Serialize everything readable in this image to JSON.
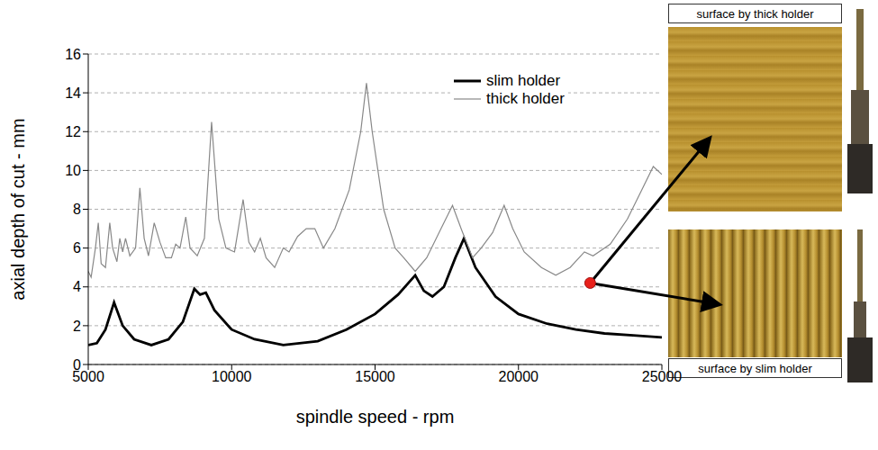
{
  "chart_data": {
    "type": "line",
    "xlabel": "spindle speed - rpm",
    "ylabel": "axial depth of cut - mm",
    "xlim": [
      5000,
      25000
    ],
    "xticks": [
      5000,
      10000,
      15000,
      20000,
      25000
    ],
    "ylim": [
      0,
      16
    ],
    "yticks": [
      0,
      2,
      4,
      6,
      8,
      10,
      12,
      14,
      16
    ],
    "grid": true,
    "legend": "upper right",
    "series": [
      {
        "name": "slim holder",
        "color": "#000000",
        "x": [
          5000,
          5300,
          5600,
          5900,
          6200,
          6600,
          7200,
          7800,
          8300,
          8700,
          8900,
          9100,
          9400,
          10000,
          10800,
          11800,
          13000,
          14000,
          15000,
          15800,
          16400,
          16700,
          17000,
          17400,
          17800,
          18100,
          18500,
          19200,
          20000,
          21000,
          22000,
          23000,
          24000,
          25000
        ],
        "values": [
          1.0,
          1.1,
          1.8,
          3.2,
          2.0,
          1.3,
          1.0,
          1.3,
          2.2,
          3.9,
          3.6,
          3.7,
          2.8,
          1.8,
          1.3,
          1.0,
          1.2,
          1.8,
          2.6,
          3.6,
          4.6,
          3.8,
          3.5,
          4.0,
          5.5,
          6.5,
          5.0,
          3.5,
          2.6,
          2.1,
          1.8,
          1.6,
          1.5,
          1.4
        ]
      },
      {
        "name": "thick holder",
        "color": "#888888",
        "x": [
          5000,
          5100,
          5250,
          5350,
          5450,
          5600,
          5750,
          5850,
          6000,
          6100,
          6200,
          6300,
          6450,
          6650,
          6800,
          6950,
          7100,
          7300,
          7500,
          7700,
          7900,
          8050,
          8200,
          8400,
          8550,
          8800,
          9050,
          9300,
          9550,
          9800,
          10100,
          10400,
          10600,
          10800,
          11000,
          11200,
          11500,
          11800,
          12000,
          12300,
          12600,
          12900,
          13200,
          13600,
          14100,
          14500,
          14700,
          14900,
          15300,
          15700,
          16000,
          16400,
          16800,
          17300,
          17700,
          18000,
          18400,
          18700,
          19100,
          19500,
          19800,
          20200,
          20800,
          21300,
          21800,
          22300,
          22600,
          23200,
          23800,
          24300,
          24700,
          25000
        ],
        "values": [
          4.8,
          4.5,
          6.0,
          7.3,
          5.2,
          5.0,
          7.3,
          6.0,
          5.3,
          6.5,
          5.8,
          6.5,
          5.6,
          6.0,
          9.1,
          6.5,
          5.6,
          7.3,
          6.3,
          5.5,
          5.5,
          6.2,
          6.0,
          7.6,
          6.0,
          5.6,
          6.5,
          12.5,
          7.5,
          6.0,
          5.8,
          8.5,
          6.3,
          5.8,
          6.5,
          5.5,
          5.0,
          6.0,
          5.8,
          6.6,
          7.0,
          7.0,
          6.0,
          7.0,
          9.0,
          12.0,
          14.5,
          12.0,
          8.0,
          6.0,
          5.5,
          4.8,
          5.5,
          7.0,
          8.2,
          7.0,
          5.5,
          6.0,
          6.8,
          8.2,
          7.0,
          5.8,
          5.0,
          4.6,
          5.0,
          5.8,
          5.6,
          6.2,
          7.5,
          9.0,
          10.2,
          9.8
        ]
      }
    ],
    "highlight": {
      "x": 22500,
      "y": 4.2
    },
    "images": [
      {
        "caption": "surface by thick holder"
      },
      {
        "caption": "surface by slim holder"
      }
    ]
  }
}
